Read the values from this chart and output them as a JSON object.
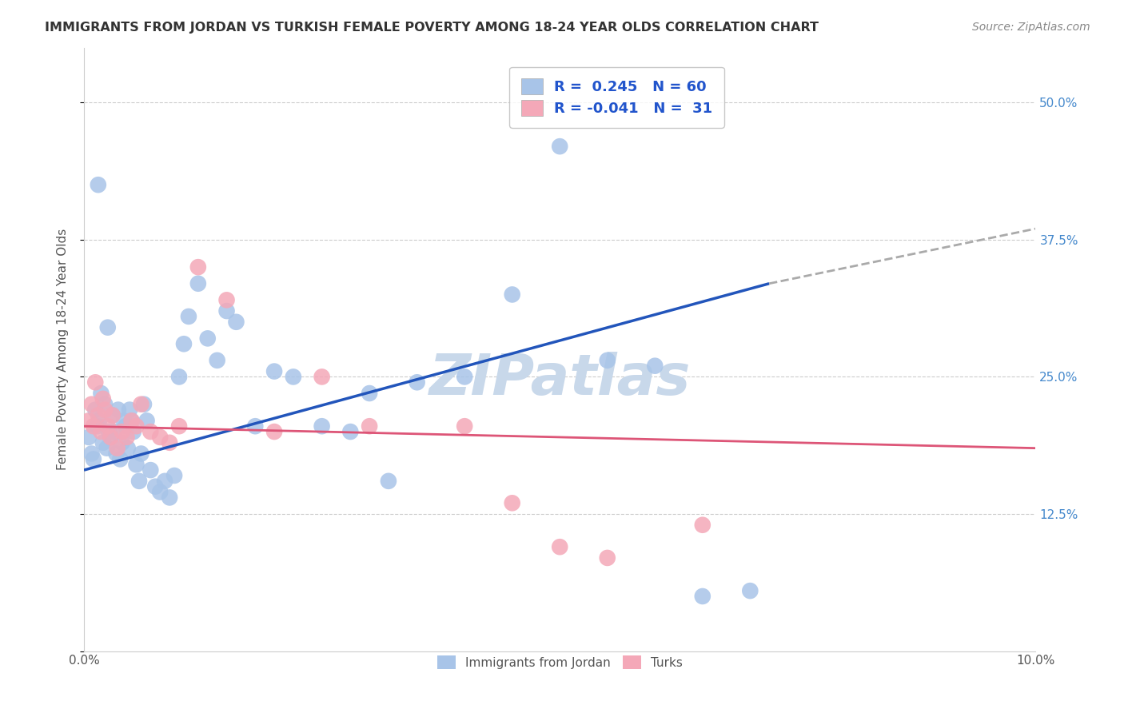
{
  "title": "IMMIGRANTS FROM JORDAN VS TURKISH FEMALE POVERTY AMONG 18-24 YEAR OLDS CORRELATION CHART",
  "source": "Source: ZipAtlas.com",
  "ylabel": "Female Poverty Among 18-24 Year Olds",
  "xlim": [
    0.0,
    10.0
  ],
  "ylim": [
    0.0,
    55.0
  ],
  "yticks": [
    0.0,
    12.5,
    25.0,
    37.5,
    50.0
  ],
  "blue_color": "#a8c4e8",
  "pink_color": "#f4a8b8",
  "blue_line_color": "#2255bb",
  "pink_line_color": "#dd5577",
  "legend_text_color": "#2255cc",
  "background_color": "#ffffff",
  "grid_color": "#cccccc",
  "jordan_x": [
    0.05,
    0.08,
    0.1,
    0.12,
    0.14,
    0.16,
    0.18,
    0.2,
    0.22,
    0.24,
    0.26,
    0.28,
    0.3,
    0.32,
    0.34,
    0.36,
    0.38,
    0.4,
    0.42,
    0.44,
    0.46,
    0.48,
    0.5,
    0.52,
    0.55,
    0.58,
    0.6,
    0.63,
    0.66,
    0.7,
    0.75,
    0.8,
    0.85,
    0.9,
    0.95,
    1.0,
    1.05,
    1.1,
    1.2,
    1.3,
    1.4,
    1.5,
    1.6,
    1.8,
    2.0,
    2.2,
    2.5,
    2.8,
    3.0,
    3.2,
    3.5,
    4.0,
    4.5,
    5.0,
    5.5,
    6.0,
    6.5,
    7.0,
    0.15,
    0.25
  ],
  "jordan_y": [
    19.5,
    18.0,
    17.5,
    22.0,
    20.5,
    21.0,
    23.5,
    19.0,
    22.5,
    18.5,
    20.0,
    19.5,
    21.5,
    20.0,
    18.0,
    22.0,
    17.5,
    19.0,
    21.0,
    20.5,
    18.5,
    22.0,
    21.0,
    20.0,
    17.0,
    15.5,
    18.0,
    22.5,
    21.0,
    16.5,
    15.0,
    14.5,
    15.5,
    14.0,
    16.0,
    25.0,
    28.0,
    30.5,
    33.5,
    28.5,
    26.5,
    31.0,
    30.0,
    20.5,
    25.5,
    25.0,
    20.5,
    20.0,
    23.5,
    15.5,
    24.5,
    25.0,
    32.5,
    46.0,
    26.5,
    26.0,
    5.0,
    5.5,
    42.5,
    29.5
  ],
  "turk_x": [
    0.05,
    0.08,
    0.1,
    0.12,
    0.15,
    0.18,
    0.2,
    0.22,
    0.25,
    0.28,
    0.3,
    0.35,
    0.4,
    0.45,
    0.5,
    0.55,
    0.6,
    0.7,
    0.8,
    0.9,
    1.0,
    1.2,
    1.5,
    2.0,
    2.5,
    3.0,
    4.0,
    4.5,
    5.0,
    5.5,
    6.5
  ],
  "turk_y": [
    21.0,
    22.5,
    20.5,
    24.5,
    21.5,
    20.0,
    23.0,
    22.0,
    20.5,
    19.5,
    21.5,
    18.5,
    20.0,
    19.5,
    21.0,
    20.5,
    22.5,
    20.0,
    19.5,
    19.0,
    20.5,
    35.0,
    32.0,
    20.0,
    25.0,
    20.5,
    20.5,
    13.5,
    9.5,
    8.5,
    11.5
  ],
  "watermark": "ZIPatlas",
  "watermark_color": "#c8d8ea",
  "jordan_r": 0.245,
  "jordan_n": 60,
  "turk_r": -0.041,
  "turk_n": 31,
  "blue_line_y0": 16.5,
  "blue_line_y1": 33.5,
  "blue_line_x0": 0.0,
  "blue_line_x1": 7.2,
  "blue_dash_x0": 7.2,
  "blue_dash_x1": 10.0,
  "blue_dash_y0": 33.5,
  "blue_dash_y1": 38.5,
  "pink_line_y0": 20.5,
  "pink_line_y1": 18.5,
  "pink_line_x0": 0.0,
  "pink_line_x1": 10.0
}
